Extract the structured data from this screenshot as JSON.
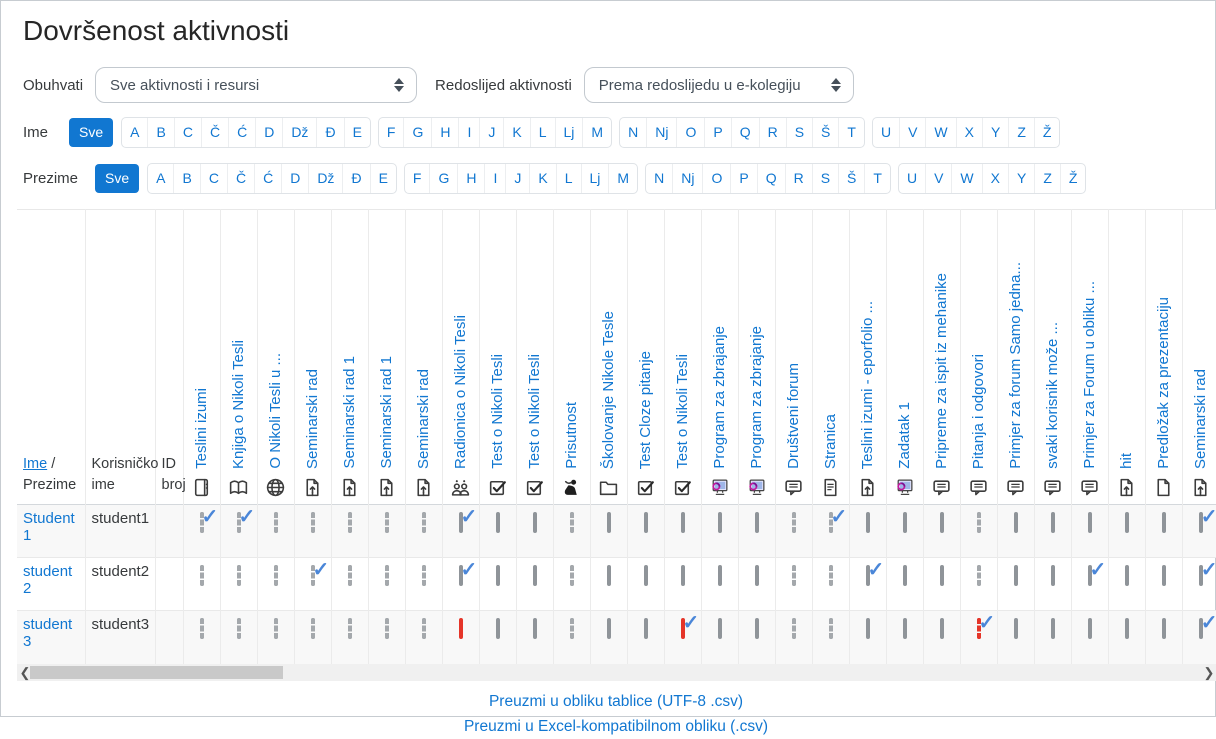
{
  "colors": {
    "primary": "#1177d1",
    "check": "#4a86d8",
    "failed": "#e53529"
  },
  "page": {
    "title": "Dovršenost aktivnosti"
  },
  "filters": {
    "include_label": "Obuhvati",
    "include_value": "Sve aktivnosti i resursi",
    "order_label": "Redoslijed aktivnosti",
    "order_value": "Prema redoslijedu u e-kolegiju"
  },
  "alpha": {
    "first_label": "Ime",
    "last_label": "Prezime",
    "all_label": "Sve",
    "letter_groups": [
      [
        "A",
        "B",
        "C",
        "Č",
        "Ć",
        "D",
        "Dž",
        "Đ",
        "E"
      ],
      [
        "F",
        "G",
        "H",
        "I",
        "J",
        "K",
        "L",
        "Lj",
        "M"
      ],
      [
        "N",
        "Nj",
        "O",
        "P",
        "Q",
        "R",
        "S",
        "Š",
        "T"
      ],
      [
        "U",
        "V",
        "W",
        "X",
        "Y",
        "Z",
        "Ž"
      ]
    ]
  },
  "table": {
    "name_header_first": "Ime",
    "name_header_sep": " / ",
    "name_header_last": "Prezime",
    "username_header": "Korisničko ime",
    "idnumber_header": "ID broj",
    "columns": [
      {
        "label": "Teslini izumi",
        "icon": "journal-icon"
      },
      {
        "label": "Knjiga o Nikoli Tesli",
        "icon": "book-icon"
      },
      {
        "label": "O Nikoli Tesli u ...",
        "icon": "url-icon"
      },
      {
        "label": "Seminarski rad",
        "icon": "assignment-icon"
      },
      {
        "label": "Seminarski rad 1",
        "icon": "assignment-icon"
      },
      {
        "label": "Seminarski rad 1",
        "icon": "assignment-icon"
      },
      {
        "label": "Seminarski rad",
        "icon": "assignment-icon"
      },
      {
        "label": "Radionica o Nikoli Tesli",
        "icon": "workshop-icon"
      },
      {
        "label": "Test o Nikoli Tesli",
        "icon": "quiz-icon"
      },
      {
        "label": "Test o Nikoli Tesli",
        "icon": "quiz-icon"
      },
      {
        "label": "Prisutnost",
        "icon": "attendance-icon"
      },
      {
        "label": "Školovanje Nikole Tesle",
        "icon": "folder-icon"
      },
      {
        "label": "Test Cloze pitanje",
        "icon": "quiz-icon"
      },
      {
        "label": "Test o Nikoli Tesli",
        "icon": "quiz-icon"
      },
      {
        "label": "Program za zbrajanje",
        "icon": "scorm-icon"
      },
      {
        "label": "Program za zbrajanje",
        "icon": "scorm-icon"
      },
      {
        "label": "Društveni forum",
        "icon": "forum-icon"
      },
      {
        "label": "Stranica",
        "icon": "page-icon"
      },
      {
        "label": "Teslini izumi - eporfolio ...",
        "icon": "assignment-icon"
      },
      {
        "label": "Zadatak 1",
        "icon": "scorm-icon"
      },
      {
        "label": "Pripreme za ispit iz mehanike",
        "icon": "forum-icon"
      },
      {
        "label": "Pitanja i odgovori",
        "icon": "forum-icon"
      },
      {
        "label": "Primjer za forum Samo jedna...",
        "icon": "forum-icon"
      },
      {
        "label": "svaki korisnik može ...",
        "icon": "forum-icon"
      },
      {
        "label": "Primjer za Forum u obliku ...",
        "icon": "forum-icon"
      },
      {
        "label": "hit",
        "icon": "assignment-icon"
      },
      {
        "label": "Predložak za prezentaciju",
        "icon": "file-icon"
      },
      {
        "label": "Seminarski rad",
        "icon": "assignment-icon"
      }
    ],
    "rows": [
      {
        "name": "Student 1",
        "username": "student1",
        "idnumber": "",
        "cells": [
          "ac",
          "ac",
          "a",
          "a",
          "a",
          "a",
          "a",
          "mc",
          "m",
          "m",
          "a",
          "m",
          "m",
          "m",
          "m",
          "m",
          "a",
          "ac",
          "m",
          "m",
          "m",
          "a",
          "m",
          "m",
          "m",
          "m",
          "m",
          "mc"
        ]
      },
      {
        "name": "student 2",
        "username": "student2",
        "idnumber": "",
        "cells": [
          "a",
          "a",
          "a",
          "ac",
          "a",
          "a",
          "a",
          "mc",
          "m",
          "m",
          "a",
          "m",
          "m",
          "m",
          "m",
          "m",
          "a",
          "a",
          "mc",
          "m",
          "m",
          "a",
          "m",
          "m",
          "mc",
          "m",
          "m",
          "mc"
        ]
      },
      {
        "name": "student 3",
        "username": "student3",
        "idnumber": "",
        "cells": [
          "a",
          "a",
          "a",
          "a",
          "a",
          "a",
          "a",
          "mf",
          "m",
          "m",
          "a",
          "m",
          "m",
          "mcf",
          "m",
          "m",
          "a",
          "a",
          "m",
          "m",
          "m",
          "acf",
          "m",
          "m",
          "m",
          "m",
          "m",
          "mc"
        ]
      }
    ]
  },
  "footer": {
    "links": [
      "Preuzmi u obliku tablice (UTF-8 .csv)",
      "Preuzmi u Excel-kompatibilnom obliku (.csv)"
    ]
  }
}
